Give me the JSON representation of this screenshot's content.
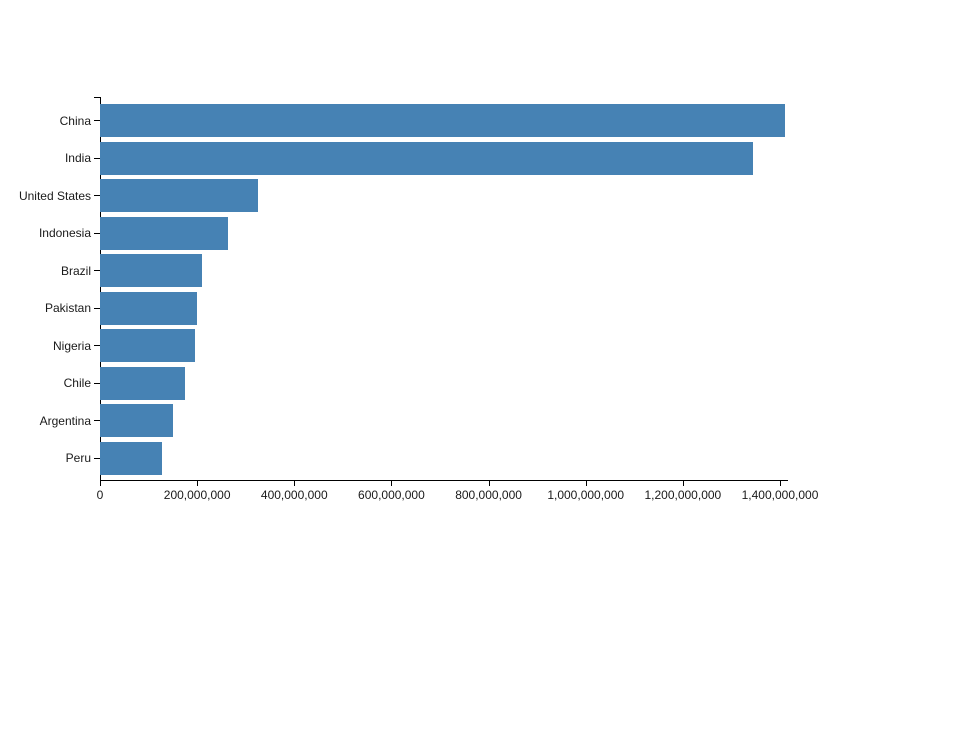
{
  "chart_data": {
    "type": "bar",
    "orientation": "horizontal",
    "title": "",
    "xlabel": "",
    "ylabel": "",
    "grid": false,
    "legend": null,
    "categories": [
      "China",
      "India",
      "United States",
      "Indonesia",
      "Brazil",
      "Pakistan",
      "Nigeria",
      "Chile",
      "Argentina",
      "Peru"
    ],
    "values": [
      1410000000,
      1345000000,
      325000000,
      264000000,
      210000000,
      200000000,
      196000000,
      175000000,
      150000000,
      128000000
    ],
    "xlim": [
      0,
      1400000000
    ],
    "x_tick_values": [
      0,
      200000000,
      400000000,
      600000000,
      800000000,
      1000000000,
      1200000000,
      1400000000
    ],
    "x_tick_labels": [
      "0",
      "200,000,000",
      "400,000,000",
      "600,000,000",
      "800,000,000",
      "1,000,000,000",
      "1,200,000,000",
      "1,400,000,000"
    ],
    "bar_color": "#4682b4",
    "axis_color": "#000000",
    "text_color": "#1a1a1a"
  }
}
